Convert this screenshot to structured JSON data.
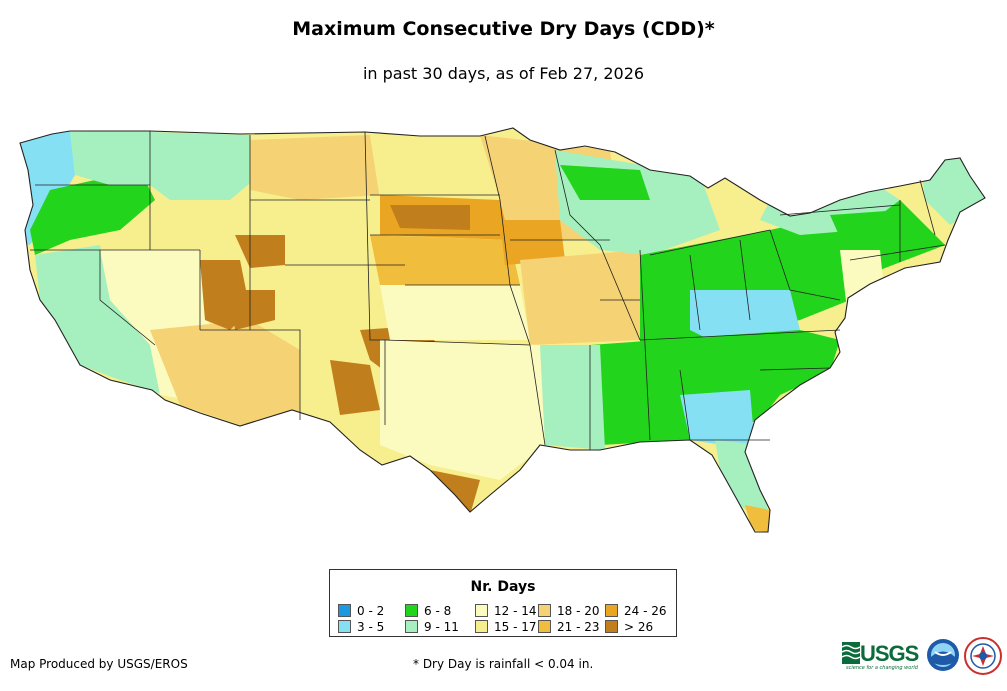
{
  "title": "Maximum Consecutive Dry Days (CDD)*",
  "subtitle": "in past 30 days, as of Feb 27, 2026",
  "legend": {
    "title": "Nr. Days",
    "items": [
      {
        "label": "0 - 2",
        "color": "#1a9ae0"
      },
      {
        "label": "3 - 5",
        "color": "#86e0f4"
      },
      {
        "label": "6 - 8",
        "color": "#22d41c"
      },
      {
        "label": "9 - 11",
        "color": "#a6f0bf"
      },
      {
        "label": "12 - 14",
        "color": "#fbfbc0"
      },
      {
        "label": "15 - 17",
        "color": "#f7ee8e"
      },
      {
        "label": "18 - 20",
        "color": "#f5d274"
      },
      {
        "label": "21 - 23",
        "color": "#f1bd3d"
      },
      {
        "label": "24 - 26",
        "color": "#eaa623"
      },
      {
        "label": "> 26",
        "color": "#c07e1c"
      }
    ]
  },
  "credit": "Map Produced by USGS/EROS",
  "footnote": "* Dry Day is rainfall < 0.04 in.",
  "logos": {
    "usgs": "USGS",
    "usgs_tagline": "science for a changing world",
    "noaa": "NOAA",
    "nws": "National Weather Service"
  }
}
